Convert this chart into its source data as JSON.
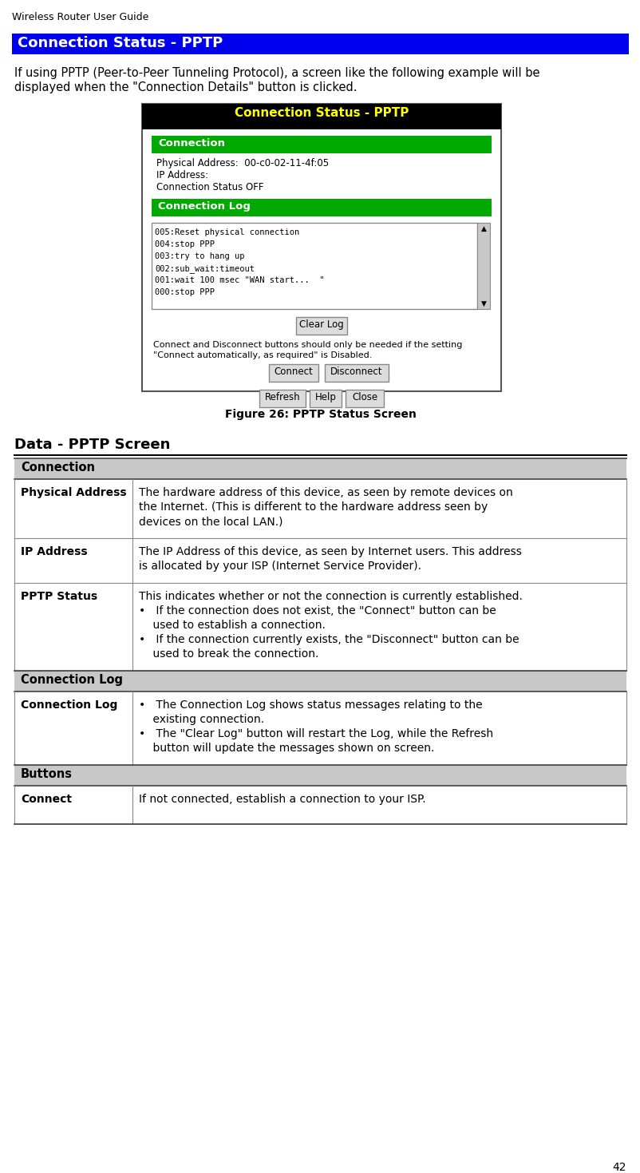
{
  "page_header": "Wireless Router User Guide",
  "section_title": "Connection Status - PPTP",
  "section_title_bg": "#0000EE",
  "section_title_color": "#FFFFFF",
  "intro_line1": "If using PPTP (Peer-to-Peer Tunneling Protocol), a screen like the following example will be",
  "intro_line2": "displayed when the \"Connection Details\" button is clicked.",
  "figure_caption": "Figure 26: PPTP Status Screen",
  "data_section_title": "Data - PPTP Screen",
  "screen_title": "Connection Status - PPTP",
  "screen_title_bg": "#000000",
  "screen_title_color": "#FFFF00",
  "conn_hdr_bg": "#00AA00",
  "conn_hdr_color": "#FFFFFF",
  "screen_fields": [
    "Physical Address:  00-c0-02-11-4f:05",
    "IP Address:",
    "Connection Status OFF"
  ],
  "log_lines": [
    "005:Reset physical connection",
    "004:stop PPP",
    "003:try to hang up",
    "002:sub_wait:timeout",
    "001:wait 100 msec \"WAN start...  \"",
    "000:stop PPP"
  ],
  "disclaimer_line1": "Connect and Disconnect buttons should only be needed if the setting",
  "disclaimer_line2": "\"Connect automatically, as required\" is Disabled.",
  "table_sections": [
    {
      "header": "Connection",
      "rows": [
        {
          "term": "Physical Address",
          "desc_lines": [
            "The hardware address of this device, as seen by remote devices on",
            "the Internet. (This is different to the hardware address seen by",
            "devices on the local LAN.)"
          ]
        },
        {
          "term": "IP Address",
          "desc_lines": [
            "The IP Address of this device, as seen by Internet users. This address",
            "is allocated by your ISP (Internet Service Provider)."
          ]
        },
        {
          "term": "PPTP Status",
          "desc_lines": [
            "This indicates whether or not the connection is currently established.",
            "•   If the connection does not exist, the \"Connect\" button can be",
            "    used to establish a connection.",
            "•   If the connection currently exists, the \"Disconnect\" button can be",
            "    used to break the connection."
          ]
        }
      ]
    },
    {
      "header": "Connection Log",
      "rows": [
        {
          "term": "Connection Log",
          "desc_lines": [
            "•   The Connection Log shows status messages relating to the",
            "    existing connection.",
            "•   The \"Clear Log\" button will restart the Log, while the Refresh",
            "    button will update the messages shown on screen."
          ]
        }
      ]
    },
    {
      "header": "Buttons",
      "rows": [
        {
          "term": "Connect",
          "desc_lines": [
            "If not connected, establish a connection to your ISP."
          ]
        }
      ]
    }
  ],
  "page_number": "42",
  "bg_color": "#FFFFFF"
}
